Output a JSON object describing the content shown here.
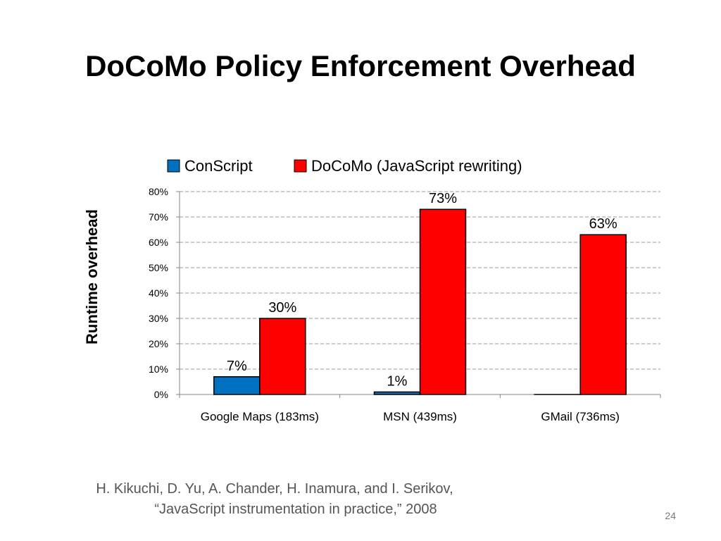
{
  "slide": {
    "title": "DoCoMo Policy Enforcement Overhead",
    "citation_line1": "H. Kikuchi, D. Yu, A. Chander, H. Inamura, and I. Serikov,",
    "citation_line2": "“JavaScript instrumentation in practice,” 2008",
    "page_number": "24"
  },
  "chart_data": {
    "type": "bar",
    "title": "",
    "xlabel": "",
    "ylabel": "Runtime overhead",
    "categories": [
      "Google Maps (183ms)",
      "MSN (439ms)",
      "GMail (736ms)"
    ],
    "series": [
      {
        "name": "ConScript",
        "values": [
          7,
          1,
          0
        ],
        "color": "#0070C0",
        "labels": [
          "7%",
          "1%",
          ""
        ]
      },
      {
        "name": "DoCoMo (JavaScript rewriting)",
        "values": [
          30,
          73,
          63
        ],
        "color": "#FF0000",
        "labels": [
          "30%",
          "73%",
          "63%"
        ]
      }
    ],
    "ylim": [
      0,
      80
    ],
    "yticks": [
      "0%",
      "10%",
      "20%",
      "30%",
      "40%",
      "50%",
      "60%",
      "70%",
      "80%"
    ],
    "grid": true,
    "legend_position": "top"
  }
}
